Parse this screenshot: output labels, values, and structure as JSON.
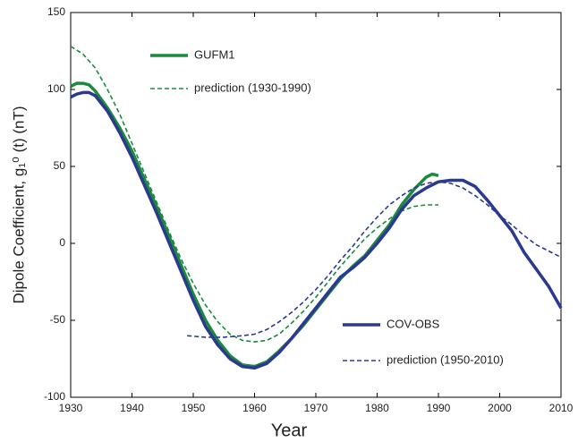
{
  "chart_data": {
    "type": "line",
    "xlabel": "Year",
    "ylabel": "Dipole Coefficient, g₁⁰ (t)   (nT)",
    "xlim": [
      1930,
      2010
    ],
    "xticks": [
      1930,
      1940,
      1950,
      1960,
      1970,
      1980,
      1990,
      2000,
      2010
    ],
    "ylim": [
      -100,
      150
    ],
    "yticks": [
      -100,
      -50,
      0,
      50,
      100,
      150
    ],
    "series": [
      {
        "name": "GUFM1",
        "color": "#1a8a3c",
        "style": "solid",
        "x": [
          1930,
          1931,
          1932,
          1933,
          1934,
          1936,
          1938,
          1940,
          1942,
          1944,
          1946,
          1948,
          1950,
          1952,
          1954,
          1956,
          1958,
          1960,
          1962,
          1964,
          1966,
          1968,
          1970,
          1972,
          1974,
          1976,
          1978,
          1980,
          1982,
          1984,
          1986,
          1988,
          1989,
          1990
        ],
        "values": [
          102,
          104,
          104,
          103,
          99,
          88,
          75,
          60,
          42,
          24,
          5,
          -14,
          -33,
          -50,
          -63,
          -73,
          -79,
          -80,
          -77,
          -70,
          -62,
          -53,
          -43,
          -33,
          -23,
          -15,
          -8,
          2,
          12,
          25,
          35,
          43,
          45,
          44
        ]
      },
      {
        "name": "prediction (1930-1990)",
        "color": "#1a8a3c",
        "style": "dashed",
        "x": [
          1930,
          1932,
          1934,
          1936,
          1938,
          1940,
          1942,
          1944,
          1946,
          1948,
          1950,
          1952,
          1954,
          1956,
          1958,
          1960,
          1962,
          1964,
          1966,
          1968,
          1970,
          1972,
          1974,
          1976,
          1978,
          1980,
          1982,
          1984,
          1986,
          1988,
          1990
        ],
        "values": [
          128,
          123,
          114,
          100,
          84,
          65,
          46,
          27,
          8,
          -10,
          -26,
          -40,
          -51,
          -59,
          -63,
          -64,
          -63,
          -59,
          -52,
          -44,
          -35,
          -25,
          -15,
          -6,
          3,
          10,
          16,
          21,
          24,
          25,
          25
        ]
      },
      {
        "name": "COV-OBS",
        "color": "#2b3990",
        "style": "solid",
        "x": [
          1930,
          1931,
          1932,
          1933,
          1934,
          1936,
          1938,
          1940,
          1942,
          1944,
          1946,
          1948,
          1950,
          1952,
          1954,
          1956,
          1958,
          1960,
          1962,
          1964,
          1966,
          1968,
          1970,
          1972,
          1974,
          1976,
          1978,
          1980,
          1982,
          1984,
          1986,
          1988,
          1990,
          1992,
          1994,
          1996,
          1998,
          2000,
          2002,
          2004,
          2006,
          2008,
          2010
        ],
        "values": [
          95,
          97,
          98,
          98,
          96,
          86,
          72,
          56,
          38,
          20,
          1,
          -18,
          -37,
          -54,
          -66,
          -75,
          -80,
          -81,
          -78,
          -71,
          -62,
          -52,
          -42,
          -32,
          -22,
          -16,
          -9,
          0,
          10,
          22,
          31,
          36,
          40,
          41,
          41,
          37,
          28,
          18,
          8,
          -6,
          -17,
          -28,
          -42
        ]
      },
      {
        "name": "prediction (1950-2010)",
        "color": "#2b3990",
        "style": "dashed",
        "x": [
          1949,
          1952,
          1955,
          1958,
          1960,
          1962,
          1964,
          1966,
          1968,
          1970,
          1972,
          1974,
          1976,
          1978,
          1980,
          1982,
          1984,
          1986,
          1988,
          1990,
          1992,
          1994,
          1996,
          1998,
          2000,
          2002,
          2004,
          2006,
          2008,
          2010
        ],
        "values": [
          -60,
          -61,
          -61,
          -60,
          -59,
          -56,
          -51,
          -45,
          -38,
          -30,
          -21,
          -11,
          -2,
          8,
          17,
          25,
          31,
          36,
          39,
          40,
          39,
          36,
          31,
          25,
          18,
          12,
          5,
          -1,
          -5,
          -9
        ]
      }
    ]
  }
}
